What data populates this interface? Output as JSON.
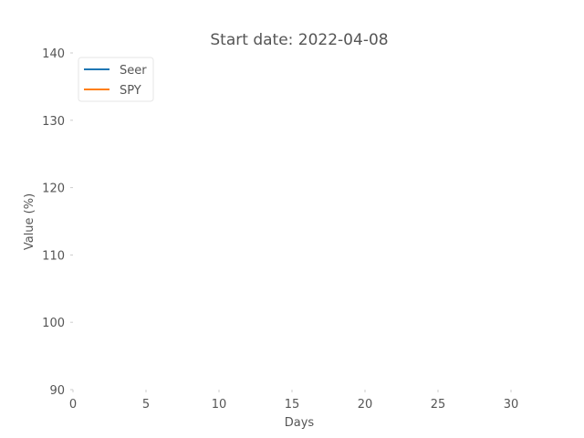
{
  "chart_data": {
    "type": "line",
    "title": "Start date: 2022-04-08",
    "xlabel": "Days",
    "ylabel": "Value (%)",
    "xlim": [
      0,
      31
    ],
    "ylim": [
      90,
      140
    ],
    "xticks": [
      0,
      5,
      10,
      15,
      20,
      25,
      30
    ],
    "yticks": [
      90,
      100,
      110,
      120,
      130,
      140
    ],
    "grid": false,
    "legend_position": "top-left",
    "series": [
      {
        "name": "Seer",
        "color": "#1f77b4",
        "x": [],
        "y": []
      },
      {
        "name": "SPY",
        "color": "#ff7f0e",
        "x": [],
        "y": []
      }
    ]
  }
}
